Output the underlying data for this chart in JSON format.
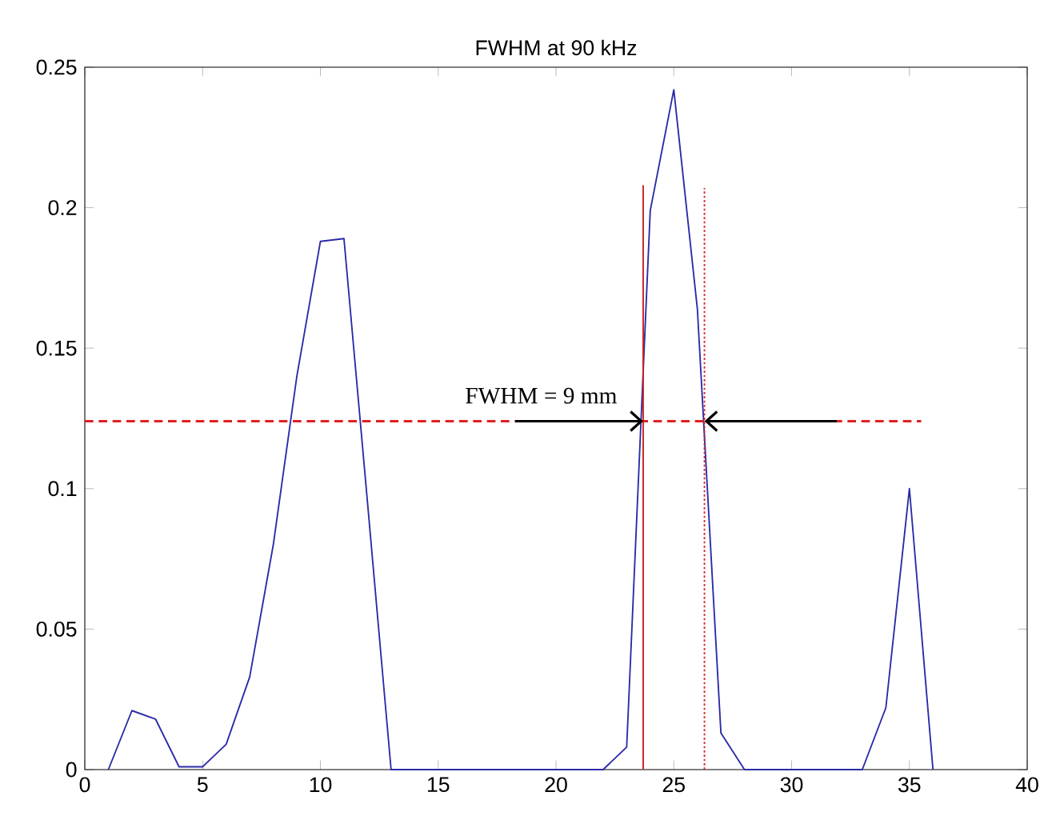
{
  "chart_data": {
    "type": "line",
    "title": "FWHM at 90 kHz",
    "xlim": [
      0,
      40
    ],
    "ylim": [
      0,
      0.25
    ],
    "xticks": [
      0,
      5,
      10,
      15,
      20,
      25,
      30,
      35,
      40
    ],
    "yticks": [
      0,
      0.05,
      0.1,
      0.15,
      0.2,
      0.25
    ],
    "grid": false,
    "marker": "none",
    "series": [
      {
        "color": "#2b2ba8",
        "line_style": "solid",
        "x": [
          1,
          2,
          3,
          4,
          5,
          6,
          7,
          8,
          9,
          10,
          11,
          12,
          13,
          14,
          15,
          16,
          17,
          18,
          19,
          20,
          21,
          22,
          23,
          24,
          25,
          26,
          27,
          28,
          29,
          30,
          31,
          32,
          33,
          34,
          35,
          36
        ],
        "values": [
          0,
          0.021,
          0.018,
          0.001,
          0.001,
          0.009,
          0.033,
          0.08,
          0.14,
          0.188,
          0.189,
          0.095,
          0,
          0,
          0,
          0,
          0,
          0,
          0,
          0,
          0,
          0,
          0.008,
          0.199,
          0.242,
          0.164,
          0.013,
          0,
          0,
          0,
          0,
          0,
          0,
          0.022,
          0.1,
          0
        ]
      },
      {
        "color": "#e02020",
        "line_style": "dashed",
        "x": [
          0,
          35.5
        ],
        "values": [
          0.124,
          0.124
        ]
      },
      {
        "color": "#c81e1e",
        "line_style": "solid",
        "x": [
          23.7,
          23.7
        ],
        "values": [
          0,
          0.208
        ]
      },
      {
        "color": "#e02020",
        "line_style": "dotted",
        "x": [
          26.3,
          26.3
        ],
        "values": [
          0,
          0.207
        ]
      }
    ],
    "annotations": [
      "FWHM = 9 mm"
    ]
  }
}
